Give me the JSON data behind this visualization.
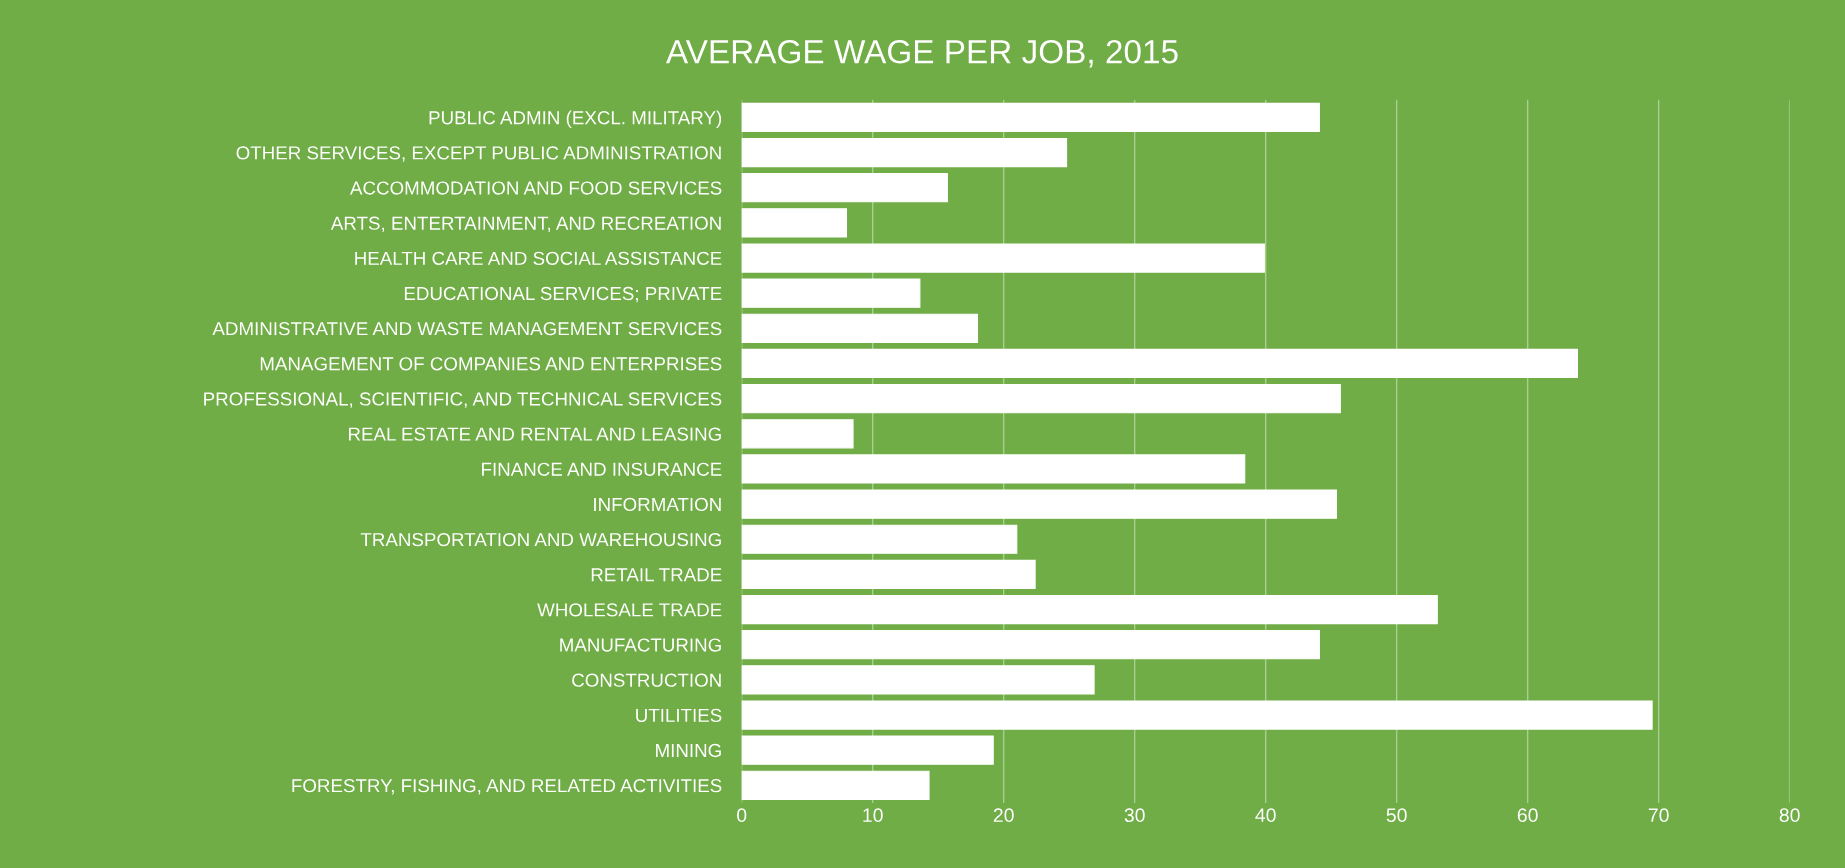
{
  "chart_data": {
    "type": "bar",
    "orientation": "horizontal",
    "title": "AVERAGE WAGE PER JOB, 2015",
    "categories": [
      "PUBLIC ADMIN (EXCL. MILITARY)",
      "OTHER SERVICES, EXCEPT PUBLIC ADMINISTRATION",
      "ACCOMMODATION AND FOOD SERVICES",
      "ARTS, ENTERTAINMENT, AND RECREATION",
      "HEALTH CARE AND SOCIAL ASSISTANCE",
      "EDUCATIONAL SERVICES; PRIVATE",
      "ADMINISTRATIVE AND WASTE MANAGEMENT SERVICES",
      "MANAGEMENT OF COMPANIES AND ENTERPRISES",
      "PROFESSIONAL, SCIENTIFIC, AND TECHNICAL SERVICES",
      "REAL ESTATE AND RENTAL AND LEASING",
      "FINANCE AND INSURANCE",
      "INFORMATION",
      "TRANSPORTATION AND WAREHOUSING",
      "RETAIL TRADE",
      "WHOLESALE TRADE",
      "MANUFACTURING",
      "CONSTRUCTION",
      "UTILITIES",
      "MINING",
      "FORESTRY, FISHING, AND RELATED ACTIVITIES"
    ],
    "values": [
      44.1,
      24.8,
      15.7,
      8.0,
      39.9,
      13.6,
      18.0,
      63.8,
      45.7,
      8.5,
      38.4,
      45.4,
      21.0,
      22.4,
      53.1,
      44.1,
      26.9,
      69.5,
      19.2,
      14.3
    ],
    "color": "#ffffff",
    "xlim": [
      0,
      80
    ],
    "xticks": [
      0,
      10,
      20,
      30,
      40,
      50,
      60,
      70,
      80
    ],
    "grid": "x"
  }
}
